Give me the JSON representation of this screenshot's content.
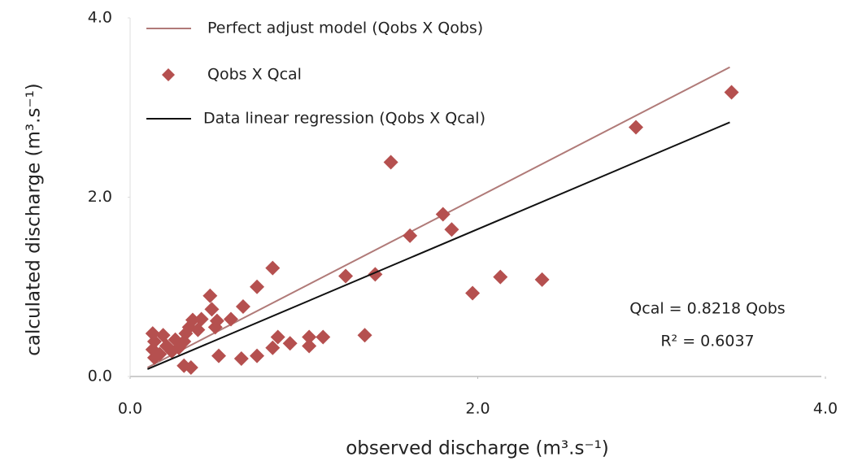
{
  "chart_data": {
    "type": "scatter",
    "x_label": "observed discharge (m³.s⁻¹)",
    "y_label": "calculated discharge (m³.s⁻¹)",
    "xlim": [
      0,
      4
    ],
    "ylim": [
      0,
      4
    ],
    "xticks": [
      {
        "value": 0,
        "label": "0.0"
      },
      {
        "value": 2,
        "label": "2.0"
      },
      {
        "value": 4,
        "label": "4.0"
      }
    ],
    "yticks": [
      {
        "value": 0,
        "label": "0.0"
      },
      {
        "value": 2,
        "label": "2.0"
      },
      {
        "value": 4,
        "label": "4.0"
      }
    ],
    "grid": false,
    "legend": "upper left",
    "annotations": [
      "Qcal = 0.8218 Qobs",
      "R² = 0.6037"
    ],
    "series": [
      {
        "name": "Perfect adjust model (Qobs X Qobs)",
        "kind": "line",
        "color": "#b07a78",
        "x": [
          0.1,
          3.45
        ],
        "values": [
          0.1,
          3.45
        ]
      },
      {
        "name": "Qobs X Qcal",
        "kind": "scatter",
        "color": "#b5504f",
        "x": [
          3.46,
          2.91,
          1.5,
          1.8,
          1.61,
          1.85,
          0.82,
          0.73,
          0.65,
          1.24,
          1.41,
          1.97,
          2.13,
          2.37,
          1.35,
          1.11,
          1.03,
          1.03,
          0.92,
          0.85,
          0.82,
          0.73,
          0.64,
          0.51,
          0.35,
          0.31,
          0.46,
          0.47,
          0.5,
          0.49,
          0.41,
          0.36,
          0.34,
          0.32,
          0.39,
          0.58,
          0.13,
          0.14,
          0.13,
          0.14,
          0.19,
          0.21,
          0.26,
          0.28,
          0.24,
          0.17,
          0.31
        ],
        "values": [
          3.17,
          2.78,
          2.39,
          1.81,
          1.57,
          1.64,
          1.21,
          1.0,
          0.78,
          1.12,
          1.14,
          0.93,
          1.11,
          1.08,
          0.46,
          0.44,
          0.44,
          0.34,
          0.37,
          0.44,
          0.32,
          0.23,
          0.2,
          0.23,
          0.1,
          0.12,
          0.9,
          0.75,
          0.62,
          0.55,
          0.64,
          0.63,
          0.55,
          0.48,
          0.52,
          0.64,
          0.48,
          0.39,
          0.3,
          0.21,
          0.46,
          0.34,
          0.41,
          0.32,
          0.28,
          0.25,
          0.39
        ]
      },
      {
        "name": "Data linear regression (Qobs X Qcal)",
        "kind": "line",
        "color": "#111111",
        "x": [
          0.1,
          3.45
        ],
        "values": [
          0.082,
          2.835
        ]
      }
    ]
  }
}
